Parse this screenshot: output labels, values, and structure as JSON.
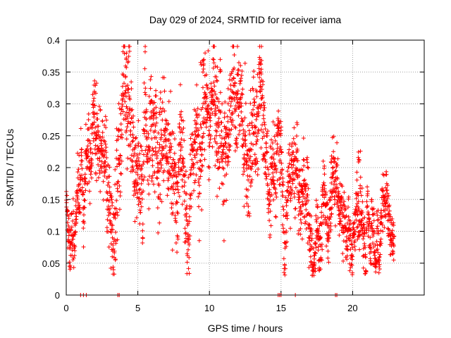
{
  "chart_data": {
    "type": "scatter",
    "title": "Day 029 of 2024, SRMTID for receiver iama",
    "xlabel": "GPS time / hours",
    "ylabel": "SRMTID / TECUs",
    "xlim": [
      0,
      25
    ],
    "ylim": [
      0,
      0.4
    ],
    "x_ticks": [
      0,
      5,
      10,
      15,
      20
    ],
    "x_tick_labels": [
      "0",
      "5",
      "10",
      "15",
      "20"
    ],
    "y_ticks": [
      0,
      0.05,
      0.1,
      0.15,
      0.2,
      0.25,
      0.3,
      0.35,
      0.4
    ],
    "y_tick_labels": [
      "0",
      "0.05",
      "0.1",
      "0.15",
      "0.2",
      "0.25",
      "0.3",
      "0.35",
      "0.4"
    ],
    "grid": true,
    "marker": "+",
    "color": "#ff0000",
    "series_name": "SRMTID",
    "trend": [
      [
        0.0,
        0.16
      ],
      [
        0.5,
        0.11
      ],
      [
        1.0,
        0.17
      ],
      [
        1.5,
        0.19
      ],
      [
        2.0,
        0.26
      ],
      [
        2.5,
        0.17
      ],
      [
        3.0,
        0.15
      ],
      [
        3.5,
        0.16
      ],
      [
        4.0,
        0.26
      ],
      [
        4.5,
        0.24
      ],
      [
        5.0,
        0.18
      ],
      [
        5.5,
        0.22
      ],
      [
        6.0,
        0.21
      ],
      [
        6.5,
        0.2
      ],
      [
        7.0,
        0.19
      ],
      [
        7.5,
        0.17
      ],
      [
        8.0,
        0.2
      ],
      [
        8.5,
        0.19
      ],
      [
        9.0,
        0.18
      ],
      [
        9.5,
        0.27
      ],
      [
        10.0,
        0.28
      ],
      [
        10.5,
        0.25
      ],
      [
        11.0,
        0.27
      ],
      [
        11.5,
        0.26
      ],
      [
        12.0,
        0.27
      ],
      [
        12.5,
        0.24
      ],
      [
        13.0,
        0.27
      ],
      [
        13.5,
        0.26
      ],
      [
        14.0,
        0.22
      ],
      [
        14.5,
        0.19
      ],
      [
        15.0,
        0.16
      ],
      [
        15.5,
        0.15
      ],
      [
        16.0,
        0.16
      ],
      [
        16.5,
        0.15
      ],
      [
        17.0,
        0.13
      ],
      [
        17.5,
        0.13
      ],
      [
        18.0,
        0.12
      ],
      [
        18.5,
        0.13
      ],
      [
        19.0,
        0.11
      ],
      [
        19.5,
        0.1
      ],
      [
        20.0,
        0.11
      ],
      [
        20.5,
        0.11
      ],
      [
        21.0,
        0.1
      ],
      [
        21.5,
        0.09
      ],
      [
        22.0,
        0.1
      ],
      [
        22.5,
        0.11
      ],
      [
        22.9,
        0.12
      ]
    ],
    "spread": [
      [
        0.0,
        0.03
      ],
      [
        2.0,
        0.05
      ],
      [
        4.0,
        0.07
      ],
      [
        9.5,
        0.07
      ],
      [
        13.5,
        0.07
      ],
      [
        15.0,
        0.05
      ],
      [
        18.0,
        0.04
      ],
      [
        22.9,
        0.03
      ]
    ],
    "peaks": [
      [
        2.0,
        0.34
      ],
      [
        4.3,
        0.385
      ],
      [
        9.5,
        0.37
      ],
      [
        10.5,
        0.36
      ],
      [
        13.5,
        0.37
      ],
      [
        18.6,
        0.23
      ],
      [
        20.5,
        0.23
      ]
    ],
    "zero_values_x": [
      1.0,
      1.2,
      1.4,
      3.6,
      3.7,
      14.8,
      14.9,
      15.0,
      16.0,
      18.8,
      18.9
    ],
    "x_extent": [
      0,
      22.9
    ],
    "point_count": 2600
  }
}
